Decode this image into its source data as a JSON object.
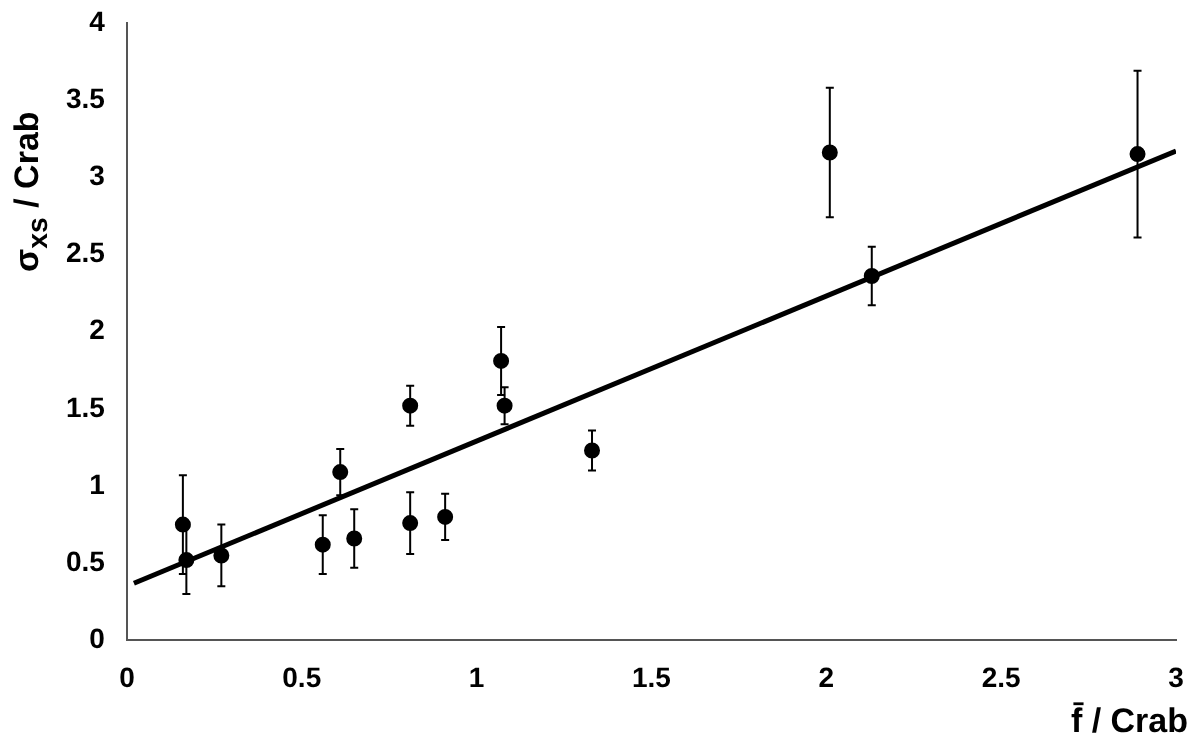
{
  "chart_data": {
    "type": "scatter",
    "xlabel": "f̄ / Crab",
    "ylabel": "σ$_{xs}$ / Crab",
    "xlim": [
      0,
      3
    ],
    "xticks": [
      0,
      0.5,
      1,
      1.5,
      2,
      2.5,
      3
    ],
    "ylim": [
      0,
      4
    ],
    "yticks": [
      0,
      0.5,
      1,
      1.5,
      2,
      2.5,
      3,
      3.5,
      4
    ],
    "grid": false,
    "legend": false,
    "series": [
      {
        "marker": "circle",
        "color": "#000000",
        "x": [
          0.16,
          0.17,
          0.27,
          0.56,
          0.61,
          0.65,
          0.81,
          0.81,
          0.91,
          1.07,
          1.08,
          1.33,
          2.01,
          2.13,
          2.89
        ],
        "values": [
          0.75,
          0.52,
          0.55,
          0.62,
          1.09,
          0.66,
          1.52,
          0.76,
          0.8,
          1.81,
          1.52,
          1.23,
          3.16,
          2.36,
          3.15
        ],
        "errors": [
          0.32,
          0.22,
          0.2,
          0.19,
          0.15,
          0.19,
          0.13,
          0.2,
          0.15,
          0.22,
          0.12,
          0.13,
          0.42,
          0.19,
          0.54
        ]
      },
      {
        "type": "line",
        "marker": "none",
        "color": "#000000",
        "x": [
          0.02,
          3
        ],
        "values": [
          0.37,
          3.17
        ]
      }
    ]
  }
}
